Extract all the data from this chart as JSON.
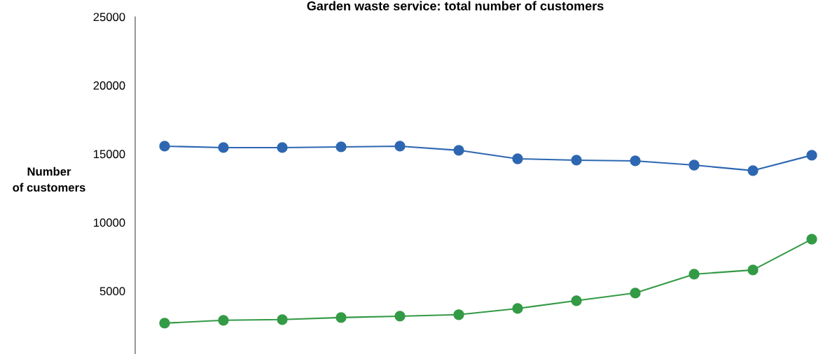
{
  "chart_data": {
    "type": "line",
    "title": "Garden waste service: total number of customers",
    "ylabel": "Number\nof customers",
    "categories": [
      null,
      null,
      null,
      null,
      null,
      null,
      null,
      null,
      null,
      null,
      null,
      null
    ],
    "series": [
      {
        "color": "#2e67b1",
        "values": [
          15560,
          15460,
          15460,
          15510,
          15560,
          15260,
          14640,
          14540,
          14490,
          14180,
          13780,
          14900
        ]
      },
      {
        "color": "#339a45",
        "values": [
          2650,
          2860,
          2910,
          3060,
          3160,
          3270,
          3720,
          4290,
          4850,
          6220,
          6530,
          8780
        ]
      }
    ],
    "ylim": [
      400,
      25000
    ],
    "yticks": [
      5000,
      10000,
      15000,
      20000,
      25000
    ],
    "marker": "circle",
    "line_style": "solid",
    "grid": false,
    "tick_labels": "y"
  }
}
